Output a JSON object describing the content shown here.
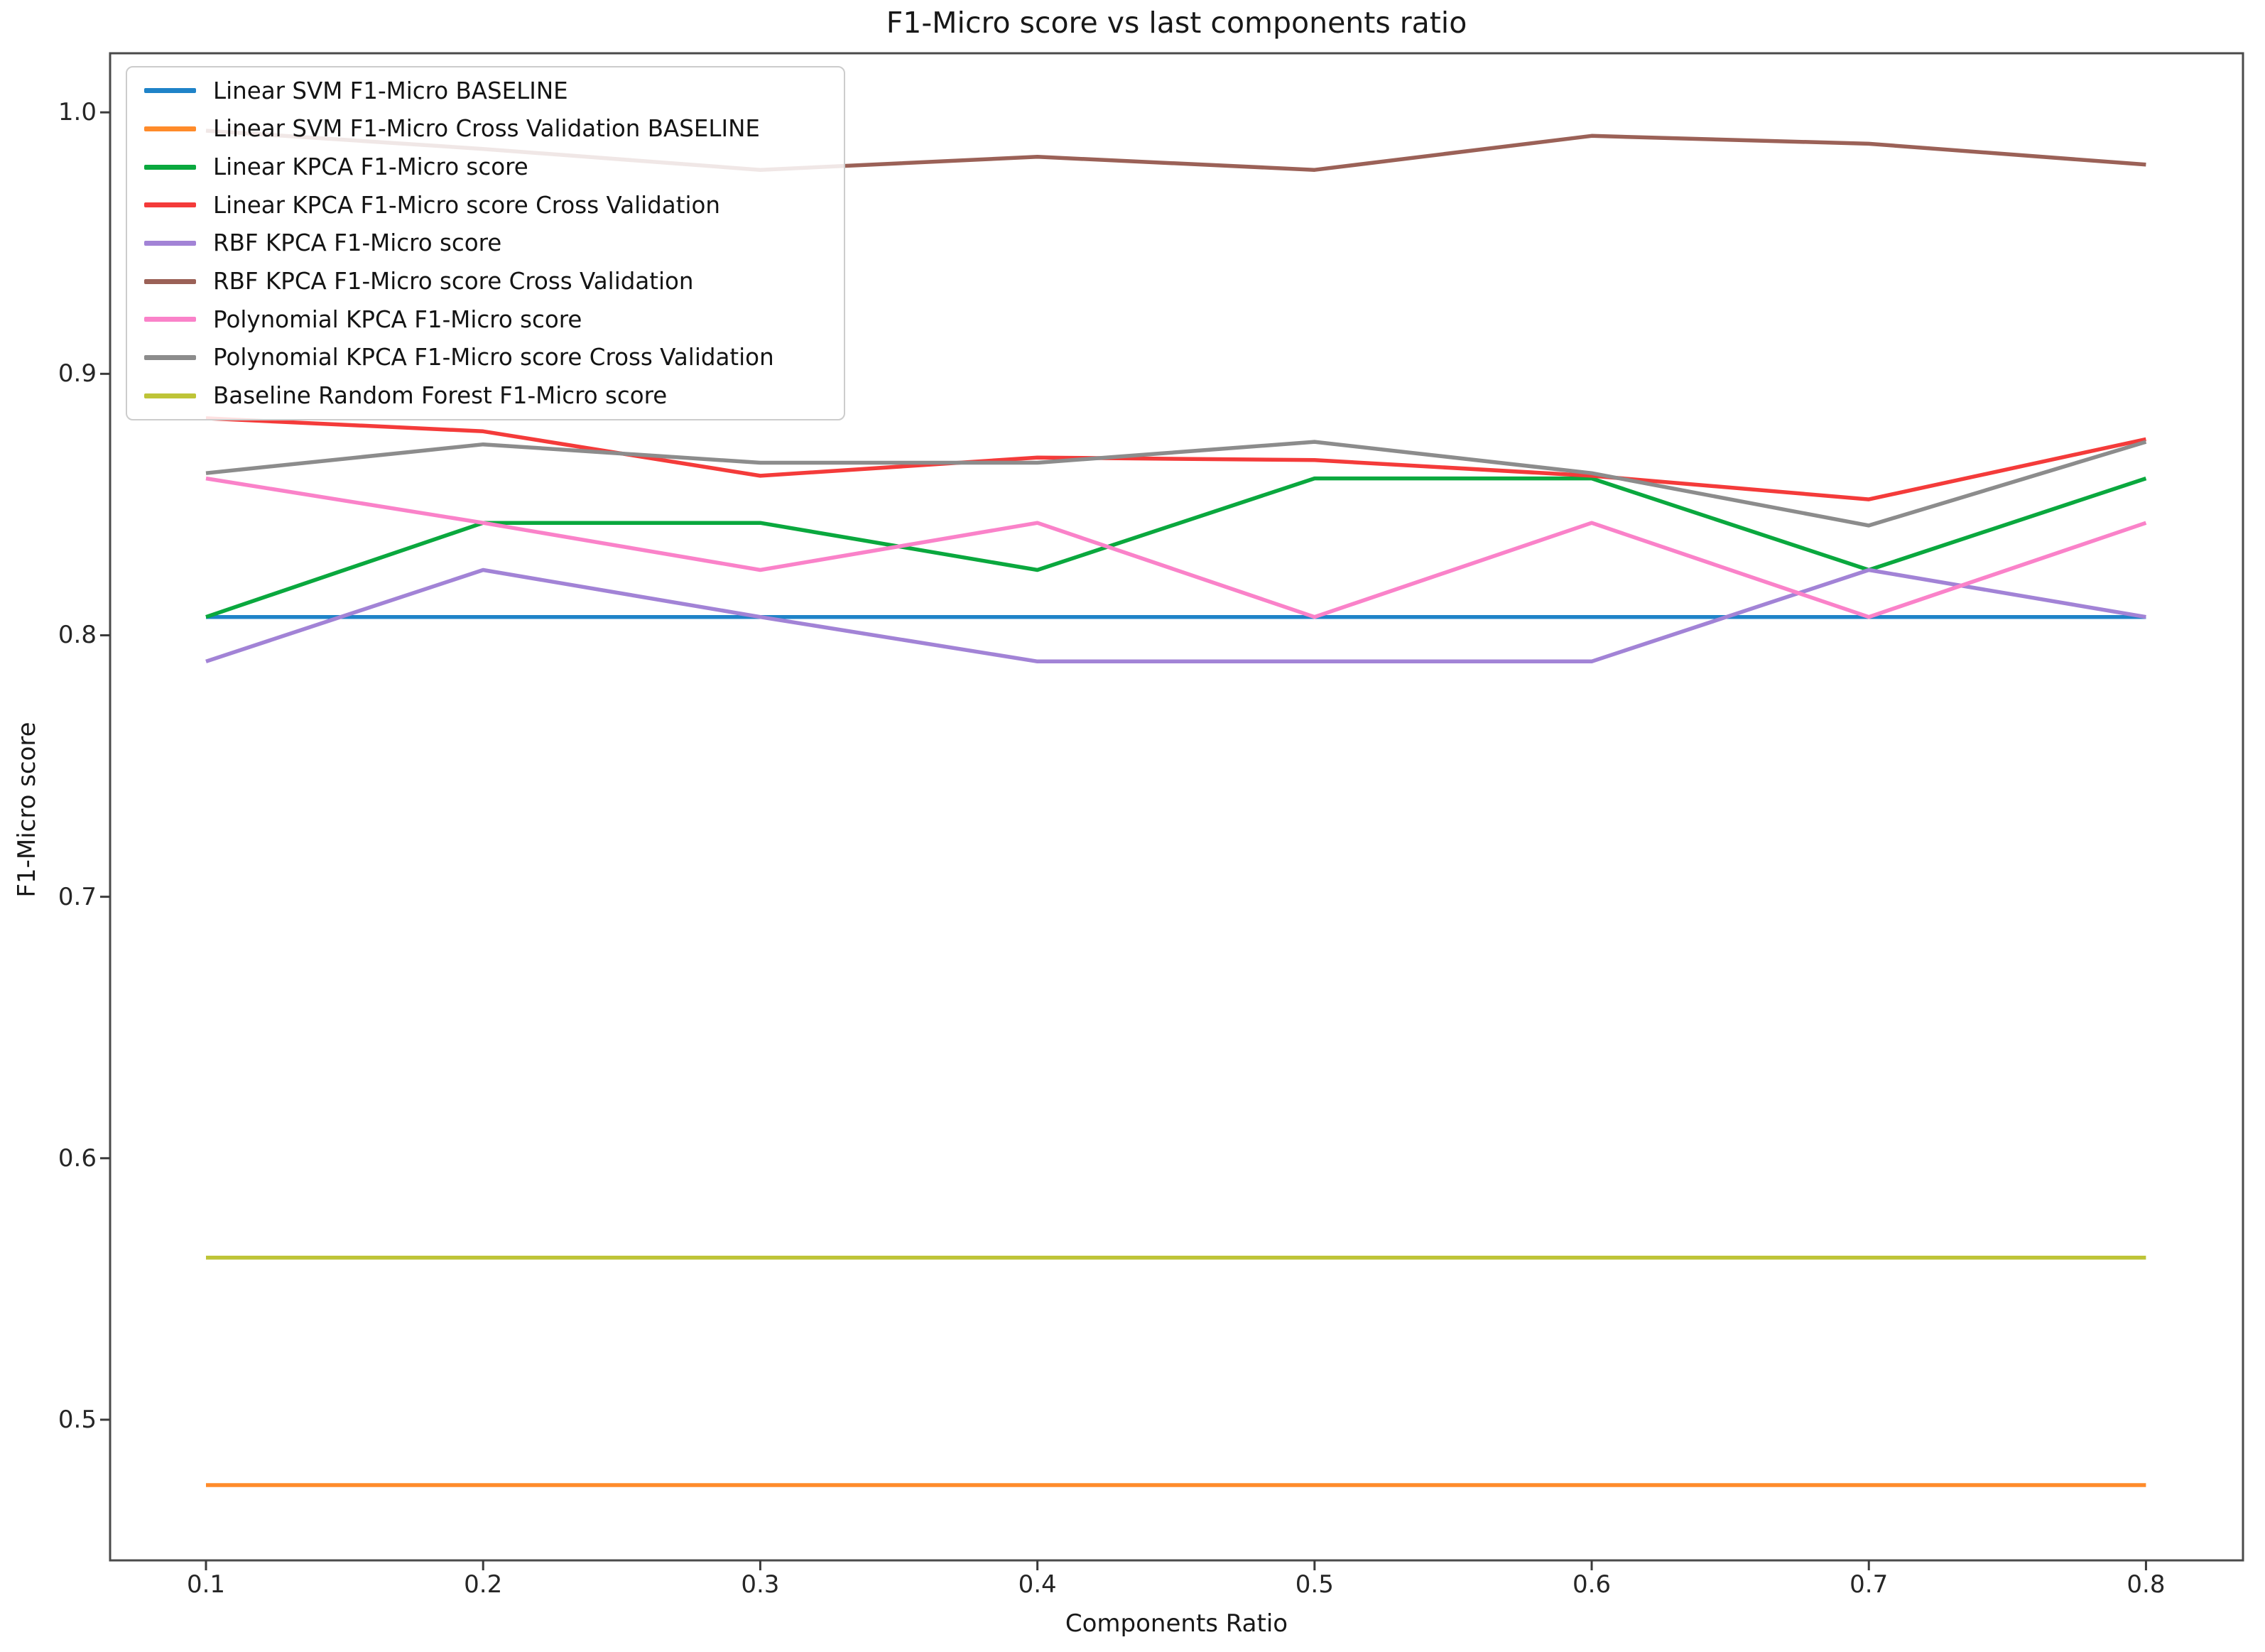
{
  "figure": {
    "title": "F1-Micro score vs last components ratio",
    "xlabel": "Components Ratio",
    "ylabel": "F1-Micro score"
  },
  "chart_data": {
    "type": "line",
    "title": "F1-Micro score vs last components ratio",
    "xlabel": "Components Ratio",
    "ylabel": "F1-Micro score",
    "grid": false,
    "legend_position": "upper left",
    "x": [
      0.1,
      0.2,
      0.3,
      0.4,
      0.5,
      0.6,
      0.7,
      0.8
    ],
    "x_tick_labels": [
      "0.1",
      "0.2",
      "0.3",
      "0.4",
      "0.5",
      "0.6",
      "0.7",
      "0.8"
    ],
    "y_tick_values": [
      0.5,
      0.6,
      0.7,
      0.8,
      0.9,
      1.0
    ],
    "y_tick_labels": [
      "0.5",
      "0.6",
      "0.7",
      "0.8",
      "0.9",
      "1.0"
    ],
    "xlim": [
      0.0654,
      0.835
    ],
    "ylim": [
      0.4462,
      1.0226
    ],
    "series": [
      {
        "name": "Linear SVM F1-Micro BASELINE",
        "color": "#1f83c8",
        "values": [
          0.807,
          0.807,
          0.807,
          0.807,
          0.807,
          0.807,
          0.807,
          0.807
        ]
      },
      {
        "name": "Linear SVM F1-Micro Cross Validation BASELINE",
        "color": "#ff8b2a",
        "values": [
          0.475,
          0.475,
          0.475,
          0.475,
          0.475,
          0.475,
          0.475,
          0.475
        ]
      },
      {
        "name": "Linear KPCA F1-Micro score",
        "color": "#0aa83e",
        "values": [
          0.807,
          0.843,
          0.843,
          0.825,
          0.86,
          0.86,
          0.825,
          0.86
        ]
      },
      {
        "name": "Linear KPCA F1-Micro score Cross Validation",
        "color": "#f43b3a",
        "values": [
          0.883,
          0.878,
          0.861,
          0.868,
          0.867,
          0.861,
          0.852,
          0.875
        ]
      },
      {
        "name": "RBF KPCA F1-Micro score",
        "color": "#a283d6",
        "values": [
          0.79,
          0.825,
          0.807,
          0.79,
          0.79,
          0.79,
          0.825,
          0.807
        ]
      },
      {
        "name": "RBF KPCA F1-Micro score Cross Validation",
        "color": "#9b6157",
        "values": [
          0.993,
          0.986,
          0.978,
          0.983,
          0.978,
          0.991,
          0.988,
          0.98
        ]
      },
      {
        "name": "Polynomial KPCA F1-Micro score",
        "color": "#fa82c9",
        "values": [
          0.86,
          0.843,
          0.825,
          0.843,
          0.807,
          0.843,
          0.807,
          0.843
        ]
      },
      {
        "name": "Polynomial KPCA F1-Micro score Cross Validation",
        "color": "#8c8c8c",
        "values": [
          0.862,
          0.873,
          0.866,
          0.866,
          0.874,
          0.862,
          0.842,
          0.874
        ]
      },
      {
        "name": "Baseline Random Forest F1-Micro score",
        "color": "#bec437",
        "values": [
          0.562,
          0.562,
          0.562,
          0.562,
          0.562,
          0.562,
          0.562,
          0.562
        ]
      }
    ]
  }
}
